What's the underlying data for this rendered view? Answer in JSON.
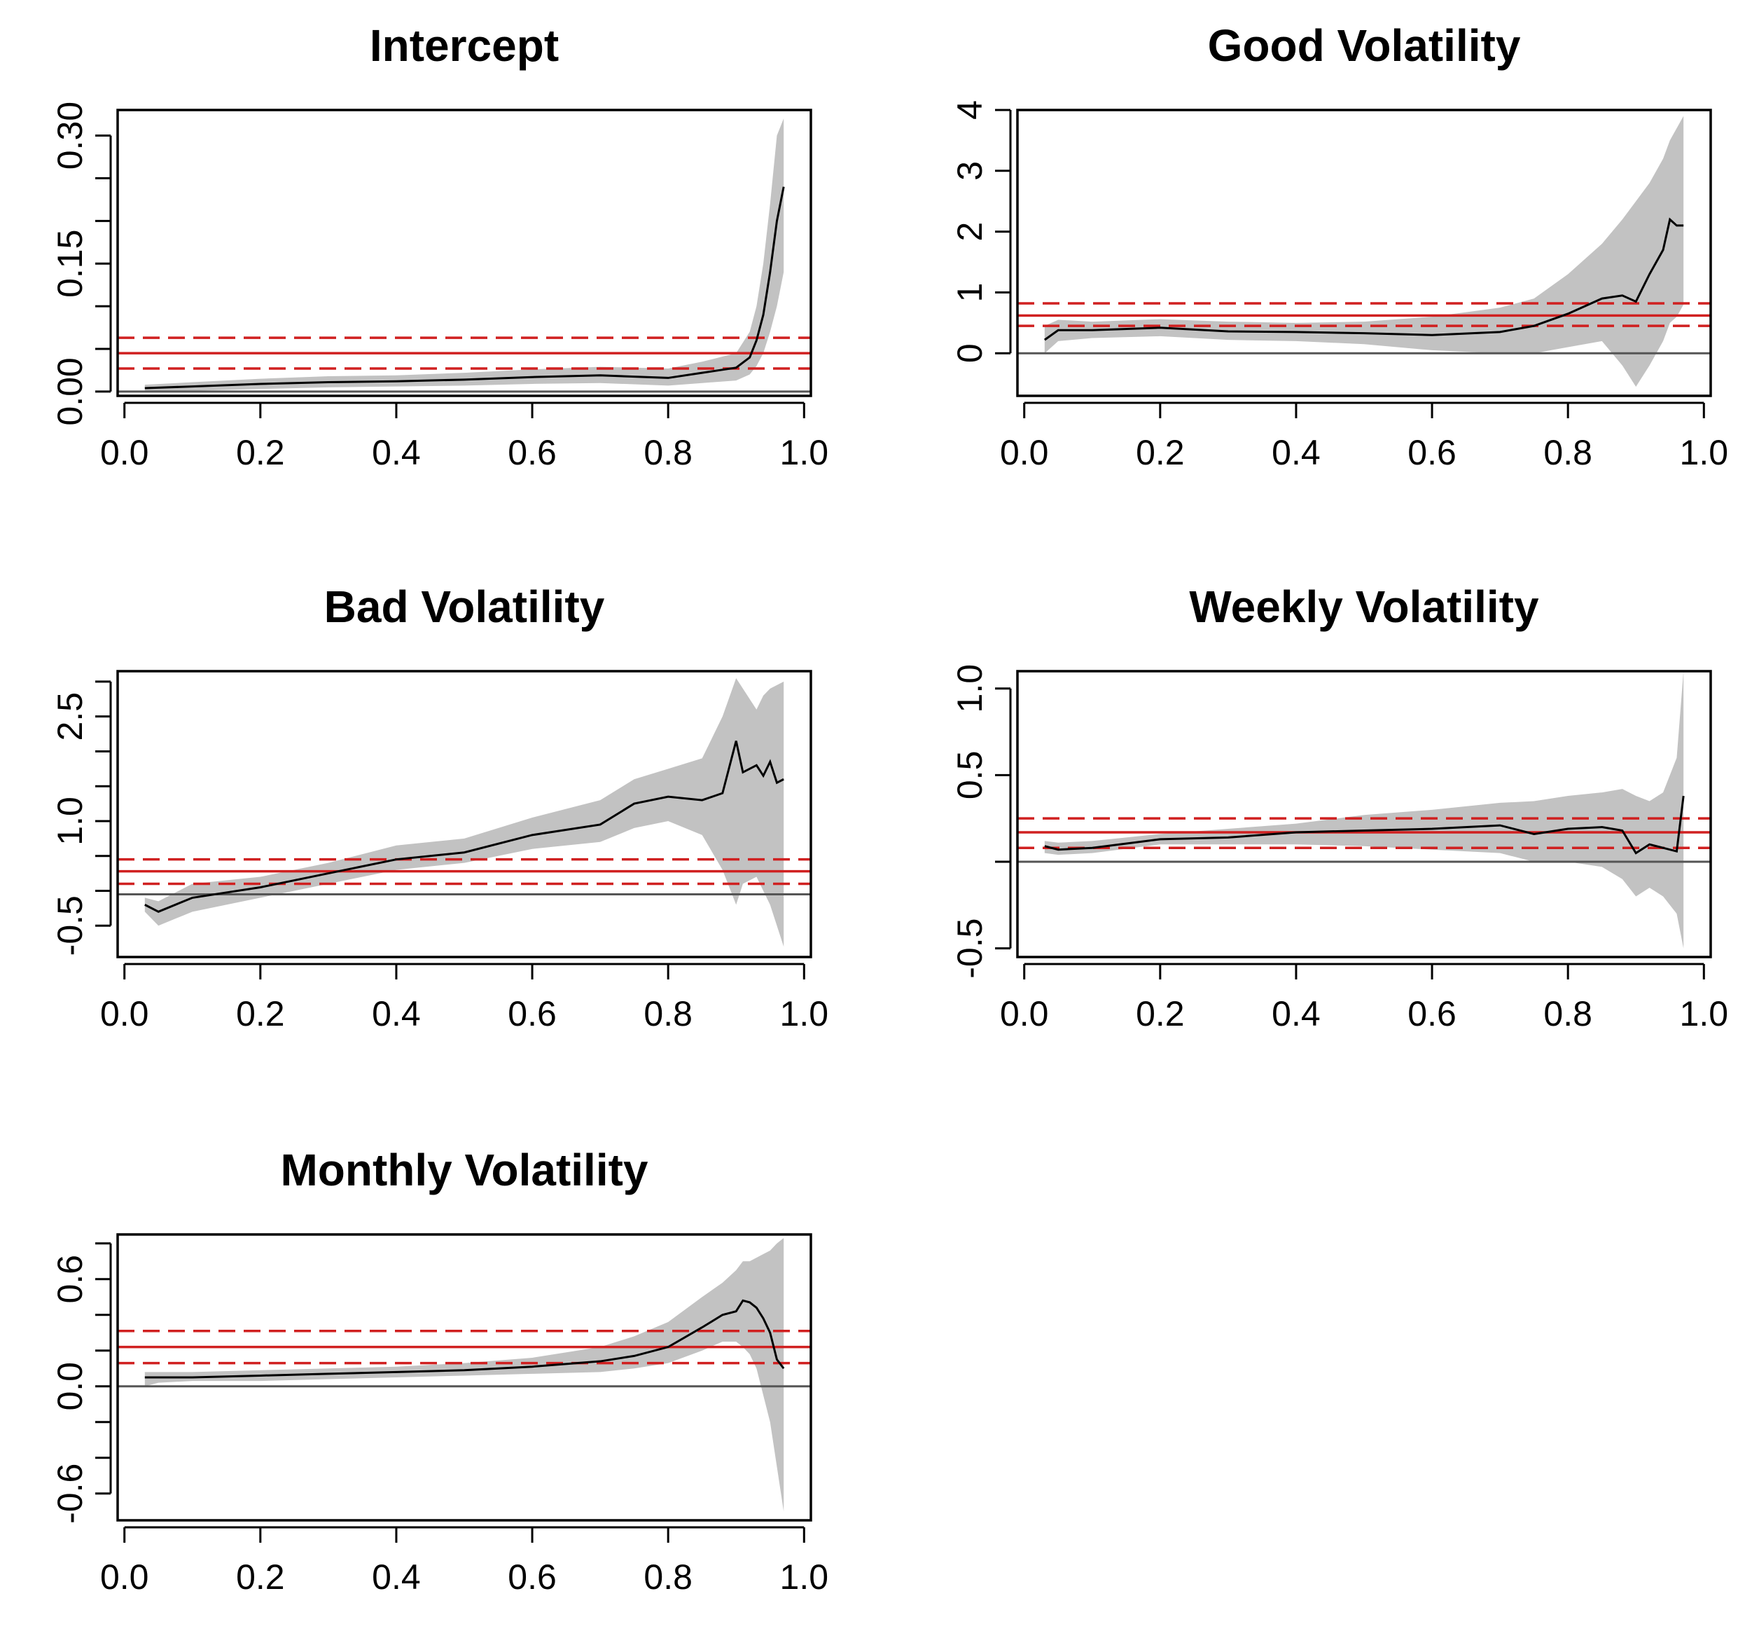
{
  "colors": {
    "band": "#c2c2c2",
    "estimate_line": "#000000",
    "ols_line": "#d02020",
    "zero_line": "#555555",
    "frame": "#000000"
  },
  "chart_data": [
    {
      "type": "line",
      "title": "Intercept",
      "xlabel": "",
      "ylabel": "",
      "xlim": [
        0.0,
        1.0
      ],
      "ylim": [
        -0.005,
        0.33
      ],
      "x_ticks": [
        0.0,
        0.2,
        0.4,
        0.6,
        0.8,
        1.0
      ],
      "x_tick_labels": [
        "0.0",
        "0.2",
        "0.4",
        "0.6",
        "0.8",
        "1.0"
      ],
      "y_ticks": [
        0.0,
        0.05,
        0.1,
        0.15,
        0.2,
        0.25,
        0.3
      ],
      "y_labeled_ticks": [
        0.0,
        0.15,
        0.3
      ],
      "y_tick_labels": [
        "0.00",
        "0.15",
        "0.30"
      ],
      "zero_line": 0.0,
      "ols_estimate": 0.045,
      "ols_ci": [
        0.027,
        0.063
      ],
      "quantile_estimate": {
        "x": [
          0.03,
          0.1,
          0.2,
          0.3,
          0.4,
          0.5,
          0.6,
          0.7,
          0.8,
          0.85,
          0.9,
          0.92,
          0.93,
          0.94,
          0.95,
          0.96,
          0.97
        ],
        "y": [
          0.004,
          0.006,
          0.009,
          0.011,
          0.012,
          0.014,
          0.017,
          0.019,
          0.016,
          0.022,
          0.028,
          0.04,
          0.06,
          0.09,
          0.14,
          0.2,
          0.24
        ]
      },
      "confidence_band": {
        "x": [
          0.03,
          0.1,
          0.2,
          0.3,
          0.4,
          0.5,
          0.6,
          0.7,
          0.8,
          0.85,
          0.9,
          0.92,
          0.93,
          0.94,
          0.95,
          0.96,
          0.97
        ],
        "lower": [
          0.0,
          0.001,
          0.003,
          0.005,
          0.006,
          0.007,
          0.009,
          0.01,
          0.007,
          0.01,
          0.013,
          0.02,
          0.03,
          0.045,
          0.07,
          0.1,
          0.14
        ],
        "upper": [
          0.008,
          0.011,
          0.015,
          0.018,
          0.019,
          0.022,
          0.026,
          0.029,
          0.027,
          0.035,
          0.045,
          0.07,
          0.1,
          0.15,
          0.22,
          0.3,
          0.32
        ]
      }
    },
    {
      "type": "line",
      "title": "Good Volatility",
      "xlabel": "",
      "ylabel": "",
      "xlim": [
        0.0,
        1.0
      ],
      "ylim": [
        -0.7,
        4.0
      ],
      "x_ticks": [
        0.0,
        0.2,
        0.4,
        0.6,
        0.8,
        1.0
      ],
      "x_tick_labels": [
        "0.0",
        "0.2",
        "0.4",
        "0.6",
        "0.8",
        "1.0"
      ],
      "y_ticks": [
        0,
        1,
        2,
        3,
        4
      ],
      "y_labeled_ticks": [
        0,
        1,
        2,
        3,
        4
      ],
      "y_tick_labels": [
        "0",
        "1",
        "2",
        "3",
        "4"
      ],
      "zero_line": 0.0,
      "ols_estimate": 0.62,
      "ols_ci": [
        0.45,
        0.82
      ],
      "quantile_estimate": {
        "x": [
          0.03,
          0.05,
          0.1,
          0.2,
          0.3,
          0.4,
          0.5,
          0.6,
          0.7,
          0.75,
          0.8,
          0.85,
          0.88,
          0.9,
          0.92,
          0.94,
          0.95,
          0.96,
          0.97
        ],
        "y": [
          0.22,
          0.38,
          0.38,
          0.42,
          0.36,
          0.35,
          0.33,
          0.3,
          0.35,
          0.45,
          0.65,
          0.9,
          0.95,
          0.85,
          1.3,
          1.7,
          2.2,
          2.1,
          2.1
        ]
      },
      "confidence_band": {
        "x": [
          0.03,
          0.05,
          0.1,
          0.2,
          0.3,
          0.4,
          0.5,
          0.6,
          0.7,
          0.75,
          0.8,
          0.85,
          0.88,
          0.9,
          0.92,
          0.94,
          0.95,
          0.96,
          0.97
        ],
        "lower": [
          0.0,
          0.2,
          0.25,
          0.28,
          0.22,
          0.2,
          0.15,
          0.05,
          0.0,
          0.0,
          0.1,
          0.2,
          -0.2,
          -0.55,
          -0.2,
          0.2,
          0.5,
          0.6,
          0.8
        ],
        "upper": [
          0.45,
          0.55,
          0.52,
          0.56,
          0.52,
          0.5,
          0.52,
          0.6,
          0.75,
          0.9,
          1.3,
          1.8,
          2.2,
          2.5,
          2.8,
          3.2,
          3.5,
          3.7,
          3.9
        ]
      }
    },
    {
      "type": "line",
      "title": "Bad Volatility",
      "xlabel": "",
      "ylabel": "",
      "xlim": [
        0.0,
        1.0
      ],
      "ylim": [
        -0.95,
        3.15
      ],
      "x_ticks": [
        0.0,
        0.2,
        0.4,
        0.6,
        0.8,
        1.0
      ],
      "x_tick_labels": [
        "0.0",
        "0.2",
        "0.4",
        "0.6",
        "0.8",
        "1.0"
      ],
      "y_ticks": [
        -1.0,
        -0.5,
        0.0,
        0.5,
        1.0,
        1.5,
        2.0,
        2.5,
        3.0
      ],
      "y_labeled_ticks": [
        -0.5,
        1.0,
        2.5
      ],
      "y_tick_labels": [
        "-0.5",
        "1.0",
        "2.5"
      ],
      "zero_line": -0.05,
      "ols_estimate": 0.28,
      "ols_ci": [
        0.1,
        0.45
      ],
      "quantile_estimate": {
        "x": [
          0.03,
          0.05,
          0.1,
          0.2,
          0.3,
          0.4,
          0.5,
          0.6,
          0.7,
          0.75,
          0.8,
          0.85,
          0.88,
          0.9,
          0.91,
          0.93,
          0.94,
          0.95,
          0.96,
          0.97
        ],
        "y": [
          -0.2,
          -0.3,
          -0.1,
          0.05,
          0.25,
          0.45,
          0.55,
          0.8,
          0.95,
          1.25,
          1.35,
          1.3,
          1.4,
          2.15,
          1.7,
          1.8,
          1.65,
          1.85,
          1.55,
          1.6
        ]
      },
      "confidence_band": {
        "x": [
          0.03,
          0.05,
          0.1,
          0.2,
          0.3,
          0.4,
          0.5,
          0.6,
          0.7,
          0.75,
          0.8,
          0.85,
          0.88,
          0.9,
          0.91,
          0.93,
          0.94,
          0.95,
          0.96,
          0.97
        ],
        "lower": [
          -0.3,
          -0.5,
          -0.3,
          -0.1,
          0.1,
          0.3,
          0.4,
          0.6,
          0.7,
          0.9,
          1.0,
          0.8,
          0.3,
          -0.2,
          0.1,
          0.2,
          0.0,
          -0.2,
          -0.5,
          -0.8
        ],
        "upper": [
          -0.1,
          -0.15,
          0.1,
          0.2,
          0.4,
          0.65,
          0.75,
          1.05,
          1.3,
          1.6,
          1.75,
          1.9,
          2.5,
          3.05,
          2.9,
          2.6,
          2.8,
          2.9,
          2.95,
          3.0
        ]
      }
    },
    {
      "type": "line",
      "title": "Weekly Volatility",
      "xlabel": "",
      "ylabel": "",
      "xlim": [
        0.0,
        1.0
      ],
      "ylim": [
        -0.55,
        1.1
      ],
      "x_ticks": [
        0.0,
        0.2,
        0.4,
        0.6,
        0.8,
        1.0
      ],
      "x_tick_labels": [
        "0.0",
        "0.2",
        "0.4",
        "0.6",
        "0.8",
        "1.0"
      ],
      "y_ticks": [
        -0.5,
        0.0,
        0.5,
        1.0
      ],
      "y_labeled_ticks": [
        -0.5,
        0.5,
        1.0
      ],
      "y_tick_labels": [
        "-0.5",
        "0.5",
        "1.0"
      ],
      "zero_line": 0.0,
      "ols_estimate": 0.17,
      "ols_ci": [
        0.08,
        0.25
      ],
      "quantile_estimate": {
        "x": [
          0.03,
          0.05,
          0.1,
          0.2,
          0.3,
          0.4,
          0.5,
          0.6,
          0.7,
          0.75,
          0.8,
          0.85,
          0.88,
          0.9,
          0.92,
          0.94,
          0.96,
          0.97
        ],
        "y": [
          0.09,
          0.07,
          0.08,
          0.13,
          0.14,
          0.17,
          0.18,
          0.19,
          0.21,
          0.16,
          0.19,
          0.2,
          0.18,
          0.05,
          0.1,
          0.08,
          0.06,
          0.38
        ]
      },
      "confidence_band": {
        "x": [
          0.03,
          0.05,
          0.1,
          0.2,
          0.3,
          0.4,
          0.5,
          0.6,
          0.7,
          0.75,
          0.8,
          0.85,
          0.88,
          0.9,
          0.92,
          0.94,
          0.96,
          0.97
        ],
        "lower": [
          0.05,
          0.04,
          0.05,
          0.1,
          0.1,
          0.1,
          0.09,
          0.07,
          0.05,
          0.0,
          0.0,
          -0.03,
          -0.1,
          -0.2,
          -0.15,
          -0.2,
          -0.3,
          -0.5
        ],
        "upper": [
          0.12,
          0.11,
          0.12,
          0.16,
          0.19,
          0.22,
          0.27,
          0.3,
          0.34,
          0.35,
          0.38,
          0.4,
          0.42,
          0.38,
          0.35,
          0.4,
          0.6,
          1.1
        ]
      }
    },
    {
      "type": "line",
      "title": "Monthly Volatility",
      "xlabel": "",
      "ylabel": "",
      "xlim": [
        0.0,
        1.0
      ],
      "ylim": [
        -0.75,
        0.85
      ],
      "x_ticks": [
        0.0,
        0.2,
        0.4,
        0.6,
        0.8,
        1.0
      ],
      "x_tick_labels": [
        "0.0",
        "0.2",
        "0.4",
        "0.6",
        "0.8",
        "1.0"
      ],
      "y_ticks": [
        -0.8,
        -0.6,
        -0.4,
        -0.2,
        0.0,
        0.2,
        0.4,
        0.6,
        0.8
      ],
      "y_labeled_ticks": [
        -0.6,
        0.0,
        0.6
      ],
      "y_tick_labels": [
        "-0.6",
        "0.0",
        "0.6"
      ],
      "zero_line": 0.0,
      "ols_estimate": 0.22,
      "ols_ci": [
        0.13,
        0.31
      ],
      "quantile_estimate": {
        "x": [
          0.03,
          0.05,
          0.1,
          0.2,
          0.3,
          0.4,
          0.5,
          0.6,
          0.7,
          0.75,
          0.8,
          0.85,
          0.88,
          0.9,
          0.91,
          0.92,
          0.93,
          0.94,
          0.95,
          0.96,
          0.97
        ],
        "y": [
          0.05,
          0.05,
          0.05,
          0.06,
          0.07,
          0.08,
          0.09,
          0.11,
          0.14,
          0.17,
          0.22,
          0.33,
          0.4,
          0.42,
          0.48,
          0.47,
          0.44,
          0.38,
          0.3,
          0.15,
          0.1
        ]
      },
      "confidence_band": {
        "x": [
          0.03,
          0.05,
          0.1,
          0.2,
          0.3,
          0.4,
          0.5,
          0.6,
          0.7,
          0.75,
          0.8,
          0.85,
          0.88,
          0.9,
          0.91,
          0.92,
          0.93,
          0.94,
          0.95,
          0.96,
          0.97
        ],
        "lower": [
          0.0,
          0.02,
          0.03,
          0.03,
          0.04,
          0.05,
          0.06,
          0.07,
          0.08,
          0.1,
          0.13,
          0.2,
          0.25,
          0.25,
          0.22,
          0.18,
          0.1,
          -0.05,
          -0.2,
          -0.45,
          -0.7
        ],
        "upper": [
          0.08,
          0.08,
          0.08,
          0.09,
          0.1,
          0.11,
          0.13,
          0.16,
          0.22,
          0.28,
          0.36,
          0.5,
          0.58,
          0.65,
          0.7,
          0.7,
          0.72,
          0.74,
          0.76,
          0.8,
          0.83
        ]
      }
    }
  ]
}
